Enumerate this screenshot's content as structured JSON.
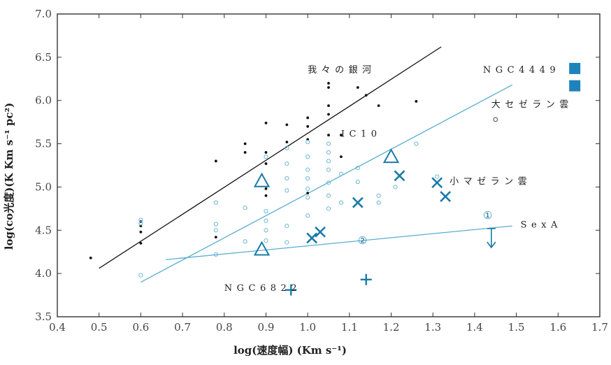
{
  "chart_data": {
    "type": "scatter",
    "xlabel": "log(速度幅) (Km s⁻¹)",
    "ylabel": "log(co光度)(K Km s⁻¹ pc²)",
    "xlim": [
      0.4,
      1.7
    ],
    "ylim": [
      3.5,
      7.0
    ],
    "x_ticks": [
      "0.4",
      "0.5",
      "0.6",
      "0.7",
      "0.8",
      "0.9",
      "1.0",
      "1.1",
      "1.2",
      "1.3",
      "1.4",
      "1.5",
      "1.6",
      "1.7"
    ],
    "y_ticks": [
      "3.5",
      "4.0",
      "4.5",
      "5.0",
      "5.5",
      "6.0",
      "6.5",
      "7.0"
    ],
    "grid": false,
    "colors": {
      "milky_way": "#111111",
      "ic10": "#5aaed0",
      "highlight": "#1a7aa8",
      "blue_fill": "#1f83bb"
    },
    "annotations": [
      {
        "label": "我々の銀河",
        "x": 1.0,
        "y": 6.32
      },
      {
        "label": "NGC4449",
        "x": 1.42,
        "y": 6.32
      },
      {
        "label": "大セゼラン雲",
        "x": 1.44,
        "y": 5.92
      },
      {
        "label": "IC10",
        "x": 1.08,
        "y": 5.58
      },
      {
        "label": "小マゼラン雲",
        "x": 1.34,
        "y": 5.03
      },
      {
        "label": "SexA",
        "x": 1.51,
        "y": 4.53
      },
      {
        "label": "NGC6822",
        "x": 0.8,
        "y": 3.8
      },
      {
        "label": "①",
        "x": 1.42,
        "y": 4.63
      },
      {
        "label": "②",
        "x": 1.12,
        "y": 4.34
      }
    ],
    "series": [
      {
        "marker": "dot",
        "x": [
          0.48,
          0.6,
          0.6,
          0.6,
          0.6,
          0.78,
          0.78,
          0.85,
          0.85,
          0.9,
          0.9,
          0.9,
          0.9,
          0.9,
          0.95,
          0.95,
          1.0,
          1.0,
          1.0,
          1.0,
          1.05,
          1.05,
          1.05,
          1.05,
          1.05,
          1.08,
          1.08,
          1.12,
          1.14,
          1.17,
          1.26
        ],
        "y": [
          4.18,
          4.35,
          4.48,
          4.55,
          4.6,
          5.3,
          4.42,
          5.5,
          5.4,
          5.74,
          5.4,
          5.27,
          4.98,
          4.9,
          5.72,
          5.52,
          5.8,
          5.7,
          5.55,
          4.93,
          6.2,
          6.15,
          5.94,
          5.84,
          5.6,
          5.6,
          5.35,
          6.15,
          6.06,
          5.94,
          5.99
        ]
      },
      {
        "marker": "circle",
        "x": [
          0.6,
          0.6,
          0.6,
          0.78,
          0.78,
          0.78,
          0.78,
          0.85,
          0.85,
          0.9,
          0.9,
          0.9,
          0.9,
          0.9,
          0.95,
          0.95,
          0.95,
          0.95,
          0.95,
          0.95,
          1.0,
          1.0,
          1.0,
          1.0,
          1.0,
          1.0,
          1.0,
          1.05,
          1.05,
          1.05,
          1.05,
          1.05,
          1.05,
          1.05,
          1.08,
          1.08,
          1.12,
          1.12,
          1.17,
          1.17,
          1.21,
          1.26,
          1.31,
          1.45
        ],
        "y": [
          4.62,
          4.58,
          3.98,
          4.82,
          4.57,
          4.5,
          4.22,
          4.76,
          4.37,
          4.72,
          4.61,
          4.5,
          4.38,
          5.35,
          5.45,
          5.27,
          5.1,
          4.96,
          4.55,
          4.36,
          5.52,
          5.35,
          5.2,
          5.1,
          4.98,
          4.88,
          4.67,
          5.5,
          5.4,
          5.3,
          5.2,
          5.05,
          4.9,
          4.75,
          5.15,
          4.82,
          5.22,
          5.06,
          4.9,
          4.82,
          5.0,
          5.5,
          5.12,
          5.78
        ]
      },
      {
        "marker": "triangle",
        "x": [
          0.89,
          0.89,
          1.2
        ],
        "y": [
          5.07,
          4.28,
          5.35
        ]
      },
      {
        "marker": "x",
        "x": [
          1.01,
          1.03,
          1.12,
          1.22,
          1.31,
          1.33
        ],
        "y": [
          4.41,
          4.48,
          4.82,
          5.13,
          5.05,
          4.89
        ]
      },
      {
        "marker": "plus",
        "x": [
          0.96,
          1.14
        ],
        "y": [
          3.81,
          3.93
        ]
      },
      {
        "marker": "square",
        "x": [
          1.64,
          1.64
        ],
        "y": [
          6.37,
          6.17
        ]
      },
      {
        "marker": "ring",
        "x": [
          1.45
        ],
        "y": [
          5.78
        ]
      }
    ],
    "lines": [
      {
        "name": "我々の銀河",
        "x": [
          0.5,
          1.32
        ],
        "y": [
          4.06,
          6.62
        ]
      },
      {
        "name": "IC10",
        "x": [
          0.6,
          1.49
        ],
        "y": [
          3.9,
          6.18
        ]
      },
      {
        "name": "SexA",
        "x": [
          0.66,
          1.49
        ],
        "y": [
          4.16,
          4.55
        ]
      }
    ],
    "upper_limit_arrow": {
      "x": 1.44,
      "y_from": 4.52,
      "y_to": 4.3
    }
  }
}
